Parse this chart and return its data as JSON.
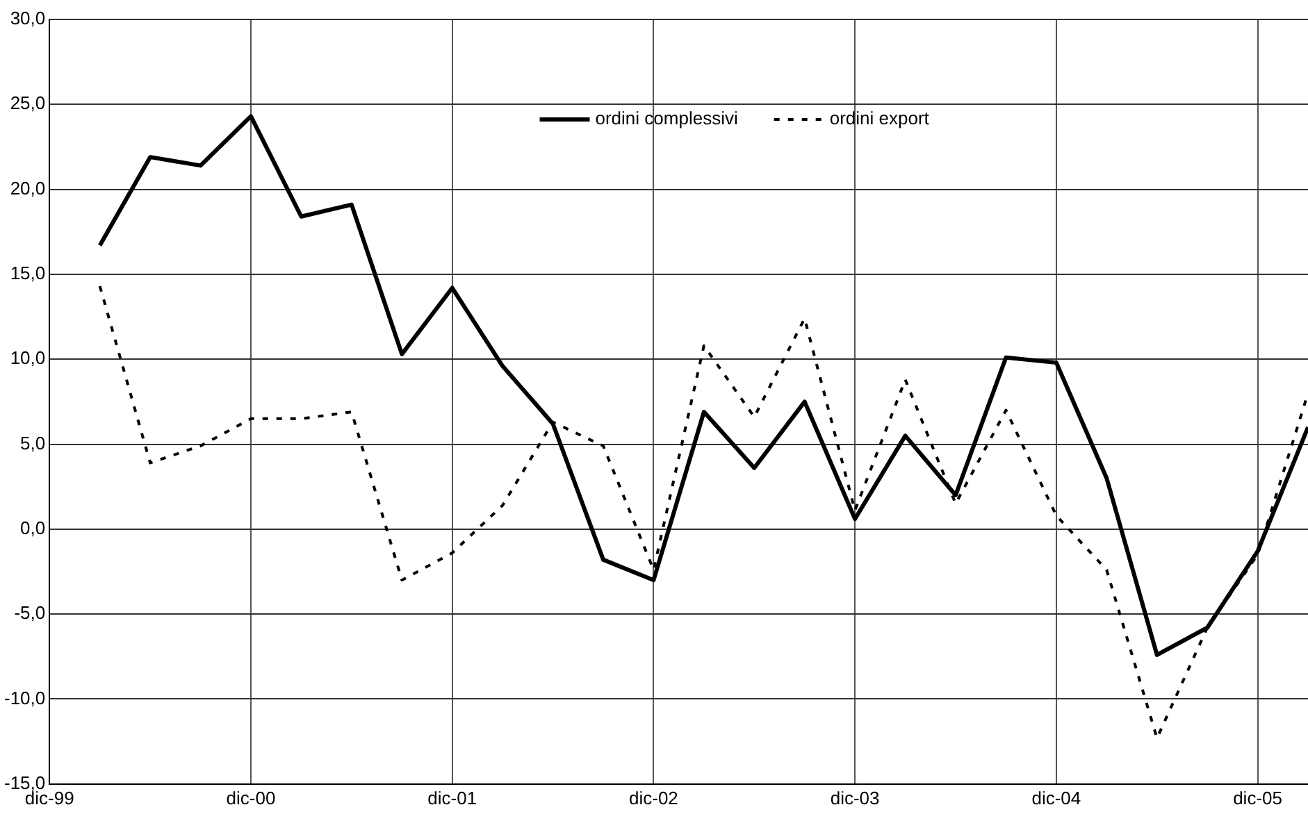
{
  "chart_data": {
    "type": "line",
    "x": [
      "2000-03",
      "2000-06",
      "2000-09",
      "2000-12",
      "2001-03",
      "2001-06",
      "2001-09",
      "2001-12",
      "2002-03",
      "2002-06",
      "2002-09",
      "2002-12",
      "2003-03",
      "2003-06",
      "2003-09",
      "2003-12",
      "2004-03",
      "2004-06",
      "2004-09",
      "2004-12",
      "2005-03",
      "2005-06",
      "2005-09",
      "2005-12",
      "2006-03"
    ],
    "series": [
      {
        "name": "ordini complessivi",
        "color": "#000000",
        "line_style": "solid",
        "values": [
          16.7,
          21.9,
          21.4,
          24.3,
          18.4,
          19.1,
          10.3,
          14.2,
          9.6,
          6.2,
          -1.8,
          -3.0,
          6.9,
          3.6,
          7.5,
          0.6,
          5.5,
          2.0,
          10.1,
          9.8,
          3.0,
          -7.4,
          -5.8,
          -1.3,
          6.0
        ]
      },
      {
        "name": "ordini export",
        "color": "#000000",
        "line_style": "dotted",
        "values": [
          14.3,
          3.9,
          4.9,
          6.5,
          6.5,
          6.9,
          -3.0,
          -1.4,
          1.4,
          6.3,
          4.9,
          -2.4,
          10.8,
          6.6,
          12.4,
          1.1,
          8.8,
          1.5,
          7.0,
          0.8,
          -2.4,
          -12.3,
          -5.8,
          -1.5,
          8.0
        ]
      }
    ],
    "xlim": [
      "1999-12",
      "2006-03"
    ],
    "xticks": [
      {
        "value": "1999-12",
        "label": "dic-99"
      },
      {
        "value": "2000-12",
        "label": "dic-00"
      },
      {
        "value": "2001-12",
        "label": "dic-01"
      },
      {
        "value": "2002-12",
        "label": "dic-02"
      },
      {
        "value": "2003-12",
        "label": "dic-03"
      },
      {
        "value": "2004-12",
        "label": "dic-04"
      },
      {
        "value": "2005-12",
        "label": "dic-05"
      }
    ],
    "ylim": [
      -15,
      30
    ],
    "yticks": [
      {
        "value": -15,
        "label": "-15,0"
      },
      {
        "value": -10,
        "label": "-10,0"
      },
      {
        "value": -5,
        "label": "-5,0"
      },
      {
        "value": 0,
        "label": "0,0"
      },
      {
        "value": 5,
        "label": "5,0"
      },
      {
        "value": 10,
        "label": "10,0"
      },
      {
        "value": 15,
        "label": "15,0"
      },
      {
        "value": 20,
        "label": "20,0"
      },
      {
        "value": 25,
        "label": "25,0"
      },
      {
        "value": 30,
        "label": "30,0"
      }
    ],
    "grid": true,
    "legend": "top",
    "marker": "none"
  }
}
